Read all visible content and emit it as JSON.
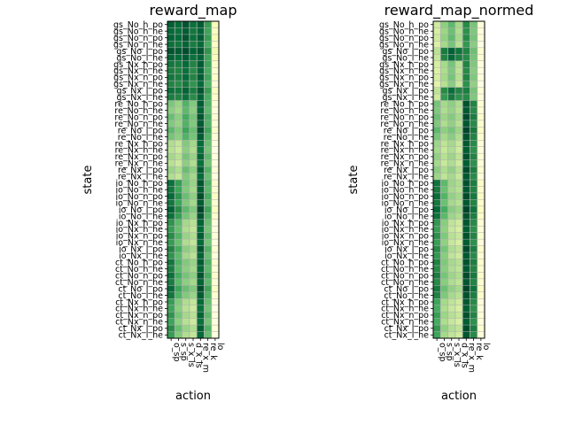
{
  "chart_data": [
    {
      "type": "heatmap",
      "title": "reward_map",
      "xlabel": "action",
      "ylabel": "state",
      "colormap": "YlGn",
      "grid": true,
      "x_categories": [
        "o_sp",
        "s_sp",
        "s_x_ls",
        "d_x_ls",
        "re_x_m",
        "re_k",
        "lo"
      ],
      "y_categories": [
        "gs_No_h_po",
        "gs_No_h_ne",
        "gs_No_n_po",
        "gs_No_n_ne",
        "gs_No_l_po",
        "gs_No_l_ne",
        "gs_Nx_h_po",
        "gs_Nx_h_ne",
        "gs_Nx_n_po",
        "gs_Nx_n_ne",
        "gs_Nx_l_po",
        "gs_Nx_l_ne",
        "re_No_h_po",
        "re_No_h_ne",
        "re_No_n_po",
        "re_No_n_ne",
        "re_No_l_po",
        "re_No_l_ne",
        "re_Nx_h_po",
        "re_Nx_h_ne",
        "re_Nx_n_po",
        "re_Nx_n_ne",
        "re_Nx_l_po",
        "re_Nx_l_ne",
        "io_No_h_po",
        "io_No_h_ne",
        "io_No_n_po",
        "io_No_n_ne",
        "io_No_l_po",
        "io_No_l_ne",
        "io_Nx_h_po",
        "io_Nx_h_ne",
        "io_Nx_n_po",
        "io_Nx_n_ne",
        "io_Nx_l_po",
        "io_Nx_l_ne",
        "ct_No_h_po",
        "ct_No_h_ne",
        "ct_No_n_po",
        "ct_No_n_ne",
        "ct_No_l_po",
        "ct_No_l_ne",
        "ct_Nx_h_po",
        "ct_Nx_h_ne",
        "ct_Nx_n_po",
        "ct_Nx_n_ne",
        "ct_Nx_l_po",
        "ct_Nx_l_ne"
      ],
      "values": [
        [
          0.75,
          0.72,
          0.78,
          0.7,
          0.76,
          0.58,
          0.18
        ],
        [
          0.72,
          0.7,
          0.76,
          0.68,
          0.74,
          0.56,
          0.16
        ],
        [
          0.74,
          0.72,
          0.78,
          0.7,
          0.76,
          0.58,
          0.18
        ],
        [
          0.7,
          0.68,
          0.74,
          0.66,
          0.72,
          0.54,
          0.15
        ],
        [
          0.78,
          0.76,
          0.8,
          0.74,
          0.78,
          0.6,
          0.2
        ],
        [
          0.74,
          0.72,
          0.76,
          0.7,
          0.74,
          0.56,
          0.17
        ],
        [
          0.68,
          0.66,
          0.72,
          0.64,
          0.76,
          0.56,
          0.14
        ],
        [
          0.66,
          0.64,
          0.7,
          0.62,
          0.74,
          0.54,
          0.13
        ],
        [
          0.68,
          0.66,
          0.72,
          0.64,
          0.76,
          0.56,
          0.14
        ],
        [
          0.64,
          0.62,
          0.68,
          0.6,
          0.72,
          0.52,
          0.12
        ],
        [
          0.7,
          0.68,
          0.74,
          0.66,
          0.78,
          0.58,
          0.16
        ],
        [
          0.66,
          0.64,
          0.7,
          0.62,
          0.74,
          0.54,
          0.14
        ],
        [
          0.45,
          0.4,
          0.52,
          0.44,
          0.76,
          0.52,
          0.12
        ],
        [
          0.42,
          0.38,
          0.5,
          0.42,
          0.74,
          0.5,
          0.11
        ],
        [
          0.48,
          0.42,
          0.54,
          0.46,
          0.78,
          0.54,
          0.13
        ],
        [
          0.44,
          0.4,
          0.52,
          0.44,
          0.76,
          0.52,
          0.12
        ],
        [
          0.5,
          0.44,
          0.56,
          0.48,
          0.8,
          0.56,
          0.14
        ],
        [
          0.46,
          0.42,
          0.52,
          0.46,
          0.76,
          0.52,
          0.12
        ],
        [
          0.36,
          0.32,
          0.44,
          0.38,
          0.72,
          0.48,
          0.1
        ],
        [
          0.34,
          0.3,
          0.42,
          0.36,
          0.7,
          0.46,
          0.09
        ],
        [
          0.38,
          0.34,
          0.46,
          0.4,
          0.74,
          0.5,
          0.11
        ],
        [
          0.34,
          0.3,
          0.42,
          0.36,
          0.7,
          0.46,
          0.1
        ],
        [
          0.4,
          0.36,
          0.48,
          0.42,
          0.76,
          0.52,
          0.12
        ],
        [
          0.36,
          0.32,
          0.44,
          0.38,
          0.72,
          0.48,
          0.1
        ],
        [
          0.7,
          0.58,
          0.46,
          0.4,
          0.78,
          0.52,
          0.14
        ],
        [
          0.68,
          0.56,
          0.44,
          0.38,
          0.76,
          0.5,
          0.13
        ],
        [
          0.72,
          0.6,
          0.48,
          0.42,
          0.8,
          0.54,
          0.15
        ],
        [
          0.68,
          0.56,
          0.44,
          0.38,
          0.76,
          0.5,
          0.13
        ],
        [
          0.74,
          0.62,
          0.5,
          0.44,
          0.82,
          0.56,
          0.16
        ],
        [
          0.7,
          0.58,
          0.46,
          0.4,
          0.78,
          0.52,
          0.14
        ],
        [
          0.6,
          0.5,
          0.38,
          0.34,
          0.74,
          0.48,
          0.11
        ],
        [
          0.58,
          0.48,
          0.36,
          0.32,
          0.72,
          0.46,
          0.1
        ],
        [
          0.62,
          0.52,
          0.4,
          0.36,
          0.76,
          0.5,
          0.12
        ],
        [
          0.58,
          0.48,
          0.36,
          0.32,
          0.72,
          0.46,
          0.1
        ],
        [
          0.64,
          0.54,
          0.42,
          0.38,
          0.78,
          0.52,
          0.13
        ],
        [
          0.6,
          0.5,
          0.38,
          0.34,
          0.74,
          0.48,
          0.11
        ],
        [
          0.68,
          0.52,
          0.44,
          0.4,
          0.76,
          0.52,
          0.13
        ],
        [
          0.66,
          0.5,
          0.42,
          0.38,
          0.74,
          0.5,
          0.12
        ],
        [
          0.7,
          0.54,
          0.46,
          0.42,
          0.78,
          0.54,
          0.14
        ],
        [
          0.66,
          0.5,
          0.42,
          0.38,
          0.74,
          0.5,
          0.12
        ],
        [
          0.72,
          0.56,
          0.48,
          0.44,
          0.8,
          0.56,
          0.15
        ],
        [
          0.68,
          0.52,
          0.44,
          0.4,
          0.76,
          0.52,
          0.13
        ],
        [
          0.58,
          0.44,
          0.36,
          0.32,
          0.72,
          0.48,
          0.1
        ],
        [
          0.56,
          0.42,
          0.34,
          0.3,
          0.7,
          0.46,
          0.09
        ],
        [
          0.6,
          0.46,
          0.38,
          0.34,
          0.74,
          0.5,
          0.11
        ],
        [
          0.56,
          0.42,
          0.34,
          0.3,
          0.7,
          0.46,
          0.1
        ],
        [
          0.62,
          0.48,
          0.4,
          0.36,
          0.76,
          0.52,
          0.12
        ],
        [
          0.58,
          0.44,
          0.36,
          0.32,
          0.72,
          0.48,
          0.1
        ]
      ]
    },
    {
      "type": "heatmap",
      "title": "reward_map_normed",
      "xlabel": "action",
      "ylabel": "state",
      "colormap": "YlGn",
      "grid": true,
      "x_categories": [
        "o_sp",
        "s_sp",
        "s_x_ls",
        "d_x_ls",
        "re_x_m",
        "re_k",
        "lo"
      ],
      "y_categories": [
        "gs_No_h_po",
        "gs_No_h_ne",
        "gs_No_n_po",
        "gs_No_n_ne",
        "gs_No_l_po",
        "gs_No_l_ne",
        "gs_Nx_h_po",
        "gs_Nx_h_ne",
        "gs_Nx_n_po",
        "gs_Nx_n_ne",
        "gs_Nx_l_po",
        "gs_Nx_l_ne",
        "re_No_h_po",
        "re_No_h_ne",
        "re_No_n_po",
        "re_No_n_ne",
        "re_No_l_po",
        "re_No_l_ne",
        "re_Nx_h_po",
        "re_Nx_h_ne",
        "re_Nx_n_po",
        "re_Nx_n_ne",
        "re_Nx_l_po",
        "re_Nx_l_ne",
        "io_No_h_po",
        "io_No_h_ne",
        "io_No_n_po",
        "io_No_n_ne",
        "io_No_l_po",
        "io_No_l_ne",
        "io_Nx_h_po",
        "io_Nx_h_ne",
        "io_Nx_n_po",
        "io_Nx_n_ne",
        "io_Nx_l_po",
        "io_Nx_l_ne",
        "ct_No_h_po",
        "ct_No_h_ne",
        "ct_No_n_po",
        "ct_No_n_ne",
        "ct_No_l_po",
        "ct_No_l_ne",
        "ct_Nx_h_po",
        "ct_Nx_h_ne",
        "ct_Nx_n_po",
        "ct_Nx_n_ne",
        "ct_Nx_l_po",
        "ct_Nx_l_ne"
      ],
      "values": [
        [
          0.3,
          0.45,
          0.55,
          0.4,
          0.7,
          0.5,
          0.08
        ],
        [
          0.28,
          0.42,
          0.52,
          0.38,
          0.68,
          0.48,
          0.07
        ],
        [
          0.3,
          0.44,
          0.54,
          0.4,
          0.7,
          0.5,
          0.08
        ],
        [
          0.26,
          0.4,
          0.5,
          0.36,
          0.66,
          0.46,
          0.06
        ],
        [
          0.35,
          0.75,
          0.85,
          0.78,
          0.72,
          0.52,
          0.1
        ],
        [
          0.32,
          0.72,
          0.82,
          0.74,
          0.7,
          0.5,
          0.09
        ],
        [
          0.28,
          0.4,
          0.5,
          0.36,
          0.72,
          0.48,
          0.07
        ],
        [
          0.26,
          0.38,
          0.48,
          0.34,
          0.7,
          0.46,
          0.06
        ],
        [
          0.28,
          0.4,
          0.5,
          0.36,
          0.72,
          0.48,
          0.07
        ],
        [
          0.24,
          0.36,
          0.46,
          0.32,
          0.68,
          0.44,
          0.05
        ],
        [
          0.34,
          0.7,
          0.8,
          0.72,
          0.74,
          0.5,
          0.09
        ],
        [
          0.3,
          0.66,
          0.76,
          0.68,
          0.7,
          0.48,
          0.08
        ],
        [
          0.5,
          0.4,
          0.45,
          0.38,
          0.9,
          0.72,
          0.1
        ],
        [
          0.48,
          0.38,
          0.43,
          0.36,
          0.88,
          0.7,
          0.09
        ],
        [
          0.52,
          0.42,
          0.47,
          0.4,
          0.92,
          0.74,
          0.11
        ],
        [
          0.48,
          0.38,
          0.44,
          0.36,
          0.88,
          0.7,
          0.1
        ],
        [
          0.55,
          0.45,
          0.5,
          0.42,
          0.94,
          0.76,
          0.12
        ],
        [
          0.5,
          0.4,
          0.46,
          0.38,
          0.9,
          0.72,
          0.1
        ],
        [
          0.42,
          0.34,
          0.4,
          0.32,
          0.88,
          0.7,
          0.08
        ],
        [
          0.4,
          0.32,
          0.38,
          0.3,
          0.86,
          0.68,
          0.07
        ],
        [
          0.44,
          0.36,
          0.42,
          0.34,
          0.9,
          0.72,
          0.09
        ],
        [
          0.4,
          0.32,
          0.38,
          0.3,
          0.86,
          0.68,
          0.08
        ],
        [
          0.46,
          0.38,
          0.44,
          0.36,
          0.92,
          0.74,
          0.1
        ],
        [
          0.42,
          0.34,
          0.4,
          0.32,
          0.88,
          0.7,
          0.08
        ],
        [
          0.78,
          0.55,
          0.42,
          0.38,
          0.9,
          0.74,
          0.12
        ],
        [
          0.76,
          0.52,
          0.4,
          0.36,
          0.88,
          0.72,
          0.11
        ],
        [
          0.8,
          0.57,
          0.44,
          0.4,
          0.92,
          0.76,
          0.13
        ],
        [
          0.76,
          0.52,
          0.4,
          0.36,
          0.88,
          0.72,
          0.11
        ],
        [
          0.82,
          0.6,
          0.46,
          0.42,
          0.94,
          0.78,
          0.14
        ],
        [
          0.78,
          0.55,
          0.42,
          0.38,
          0.9,
          0.74,
          0.12
        ],
        [
          0.66,
          0.46,
          0.34,
          0.3,
          0.88,
          0.7,
          0.09
        ],
        [
          0.64,
          0.44,
          0.32,
          0.28,
          0.86,
          0.68,
          0.08
        ],
        [
          0.68,
          0.48,
          0.36,
          0.32,
          0.9,
          0.72,
          0.1
        ],
        [
          0.64,
          0.44,
          0.32,
          0.28,
          0.86,
          0.68,
          0.08
        ],
        [
          0.7,
          0.5,
          0.38,
          0.34,
          0.92,
          0.74,
          0.11
        ],
        [
          0.66,
          0.46,
          0.34,
          0.3,
          0.88,
          0.7,
          0.09
        ],
        [
          0.72,
          0.48,
          0.4,
          0.36,
          0.9,
          0.74,
          0.11
        ],
        [
          0.7,
          0.46,
          0.38,
          0.34,
          0.88,
          0.72,
          0.1
        ],
        [
          0.74,
          0.5,
          0.42,
          0.38,
          0.92,
          0.76,
          0.12
        ],
        [
          0.7,
          0.46,
          0.38,
          0.34,
          0.88,
          0.72,
          0.1
        ],
        [
          0.76,
          0.52,
          0.44,
          0.4,
          0.94,
          0.78,
          0.13
        ],
        [
          0.72,
          0.48,
          0.4,
          0.36,
          0.9,
          0.74,
          0.11
        ],
        [
          0.62,
          0.4,
          0.34,
          0.3,
          0.88,
          0.7,
          0.08
        ],
        [
          0.6,
          0.38,
          0.32,
          0.28,
          0.86,
          0.68,
          0.07
        ],
        [
          0.64,
          0.42,
          0.36,
          0.32,
          0.9,
          0.72,
          0.09
        ],
        [
          0.6,
          0.38,
          0.32,
          0.28,
          0.86,
          0.68,
          0.08
        ],
        [
          0.66,
          0.44,
          0.38,
          0.34,
          0.92,
          0.74,
          0.1
        ],
        [
          0.62,
          0.4,
          0.34,
          0.3,
          0.88,
          0.7,
          0.08
        ]
      ]
    }
  ]
}
